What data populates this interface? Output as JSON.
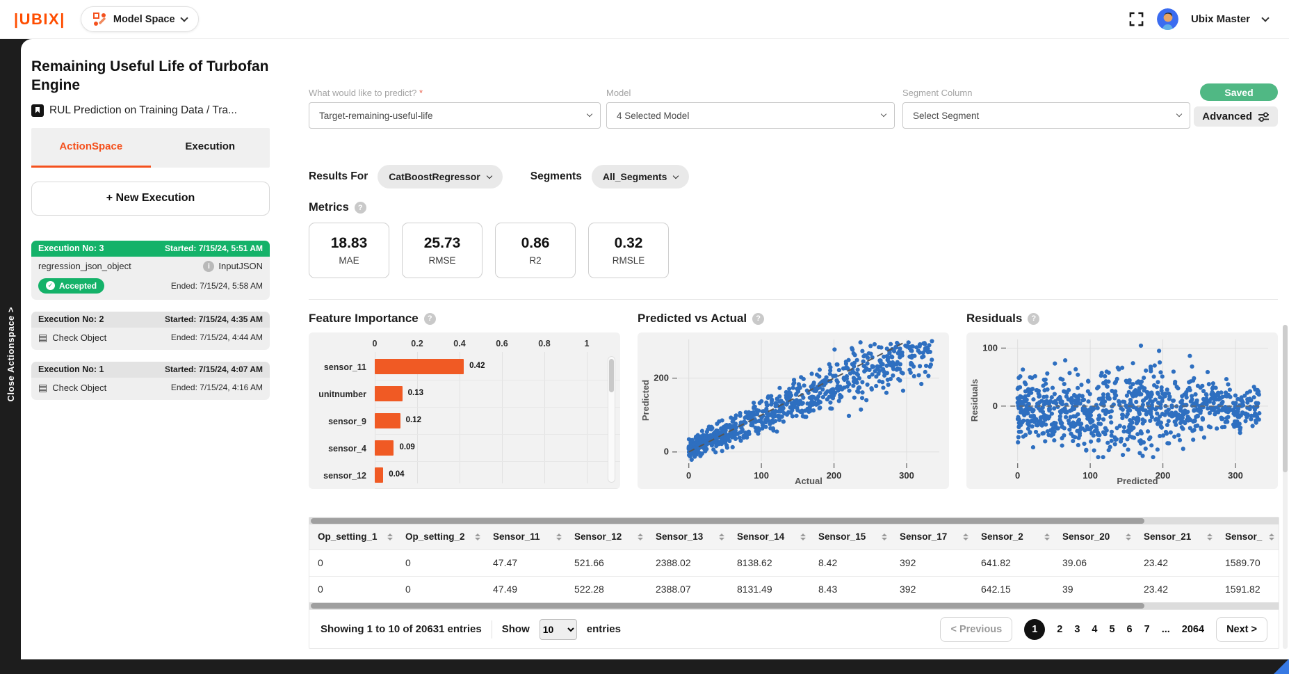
{
  "topbar": {
    "logo": "|UBIX|",
    "model_space": "Model Space",
    "user_name": "Ubix Master"
  },
  "close_strip": "Close Actionspace >",
  "sidebar": {
    "title": "Remaining Useful Life of Turbofan Engine",
    "subtitle": "RUL Prediction on Training Data / Tra...",
    "tabs": [
      {
        "label": "ActionSpace",
        "active": true
      },
      {
        "label": "Execution",
        "active": false
      }
    ],
    "new_execution_label": "+ New Execution",
    "executions": [
      {
        "title": "Execution No: 3",
        "started": "Started: 7/15/24, 5:51 AM",
        "object_name": "regression_json_object",
        "object_type": "InputJSON",
        "status": "Accepted",
        "ended": "Ended: 7/15/24, 5:58 AM"
      },
      {
        "title": "Execution No: 2",
        "started": "Started: 7/15/24, 4:35 AM",
        "action": "Check Object",
        "ended": "Ended: 7/15/24, 4:44 AM"
      },
      {
        "title": "Execution No: 1",
        "started": "Started: 7/15/24, 4:07 AM",
        "action": "Check Object",
        "ended": "Ended: 7/15/24, 4:16 AM"
      }
    ]
  },
  "form": {
    "predict_label": "What would like to predict?",
    "predict_required": "*",
    "predict_value": "Target-remaining-useful-life",
    "model_label": "Model",
    "model_value": "4 Selected Model",
    "segment_label": "Segment Column",
    "segment_value": "Select Segment",
    "saved_label": "Saved",
    "advanced_label": "Advanced"
  },
  "results": {
    "results_for_label": "Results For",
    "model_pill": "CatBoostRegressor",
    "segments_label": "Segments",
    "segments_pill": "All_Segments"
  },
  "metrics": {
    "title": "Metrics",
    "cards": [
      {
        "value": "18.83",
        "label": "MAE"
      },
      {
        "value": "25.73",
        "label": "RMSE"
      },
      {
        "value": "0.86",
        "label": "R2"
      },
      {
        "value": "0.32",
        "label": "RMSLE"
      }
    ]
  },
  "chart_data": [
    {
      "type": "bar",
      "title": "Feature Importance",
      "orientation": "horizontal",
      "categories": [
        "sensor_11",
        "unitnumber",
        "sensor_9",
        "sensor_4",
        "sensor_12"
      ],
      "values": [
        0.42,
        0.13,
        0.12,
        0.09,
        0.04
      ],
      "value_labels": [
        "0.42",
        "0.13",
        "0.12",
        "0.09",
        "0.04"
      ],
      "xticks": [
        0,
        0.2,
        0.4,
        0.6,
        0.8,
        1
      ],
      "xtick_labels": [
        "0",
        "0.2",
        "0.4",
        "0.6",
        "0.8",
        "1"
      ],
      "xlim": [
        0,
        1
      ],
      "bar_color": "#f05a24",
      "grid": true
    },
    {
      "type": "scatter",
      "title": "Predicted vs Actual",
      "xlabel": "Actual",
      "ylabel": "Predicted",
      "xticks": [
        0,
        100,
        200,
        300
      ],
      "yticks": [
        0,
        200
      ],
      "xlim": [
        -15,
        345
      ],
      "ylim": [
        -25,
        305
      ],
      "n_points": 850,
      "point_color": "#2e6fc0",
      "reference_line": "diagonal-dashed",
      "grid": true,
      "seed": 42
    },
    {
      "type": "scatter",
      "title": "Residuals",
      "xlabel": "Predicted",
      "ylabel": "Residuals",
      "xticks": [
        0,
        100,
        200,
        300
      ],
      "yticks": [
        0,
        100
      ],
      "xlim": [
        -15,
        345
      ],
      "ylim": [
        -95,
        115
      ],
      "n_points": 900,
      "point_color": "#2e6fc0",
      "reference_line": "zero-dashed",
      "grid": true,
      "seed": 7
    }
  ],
  "table": {
    "headers": [
      "Op_setting_1",
      "Op_setting_2",
      "Sensor_11",
      "Sensor_12",
      "Sensor_13",
      "Sensor_14",
      "Sensor_15",
      "Sensor_17",
      "Sensor_2",
      "Sensor_20",
      "Sensor_21",
      "Sensor_"
    ],
    "rows": [
      [
        "0",
        "0",
        "47.47",
        "521.66",
        "2388.02",
        "8138.62",
        "8.42",
        "392",
        "641.82",
        "39.06",
        "23.42",
        "1589.70"
      ],
      [
        "0",
        "0",
        "47.49",
        "522.28",
        "2388.07",
        "8131.49",
        "8.43",
        "392",
        "642.15",
        "39",
        "23.42",
        "1591.82"
      ]
    ],
    "footer": {
      "showing": "Showing 1 to 10 of 20631 entries",
      "show_label": "Show",
      "page_size": "10",
      "entries_label": "entries",
      "prev_label": "< Previous",
      "pages": [
        "1",
        "2",
        "3",
        "4",
        "5",
        "6",
        "7",
        "...",
        "2064"
      ],
      "active_page": "1",
      "next_label": "Next >"
    }
  },
  "colors": {
    "accent_orange": "#f4511e",
    "accent_green": "#14b269",
    "saved_green": "#50b884",
    "point_blue": "#2e6fc0",
    "logo_orange": "#ff4d00"
  }
}
